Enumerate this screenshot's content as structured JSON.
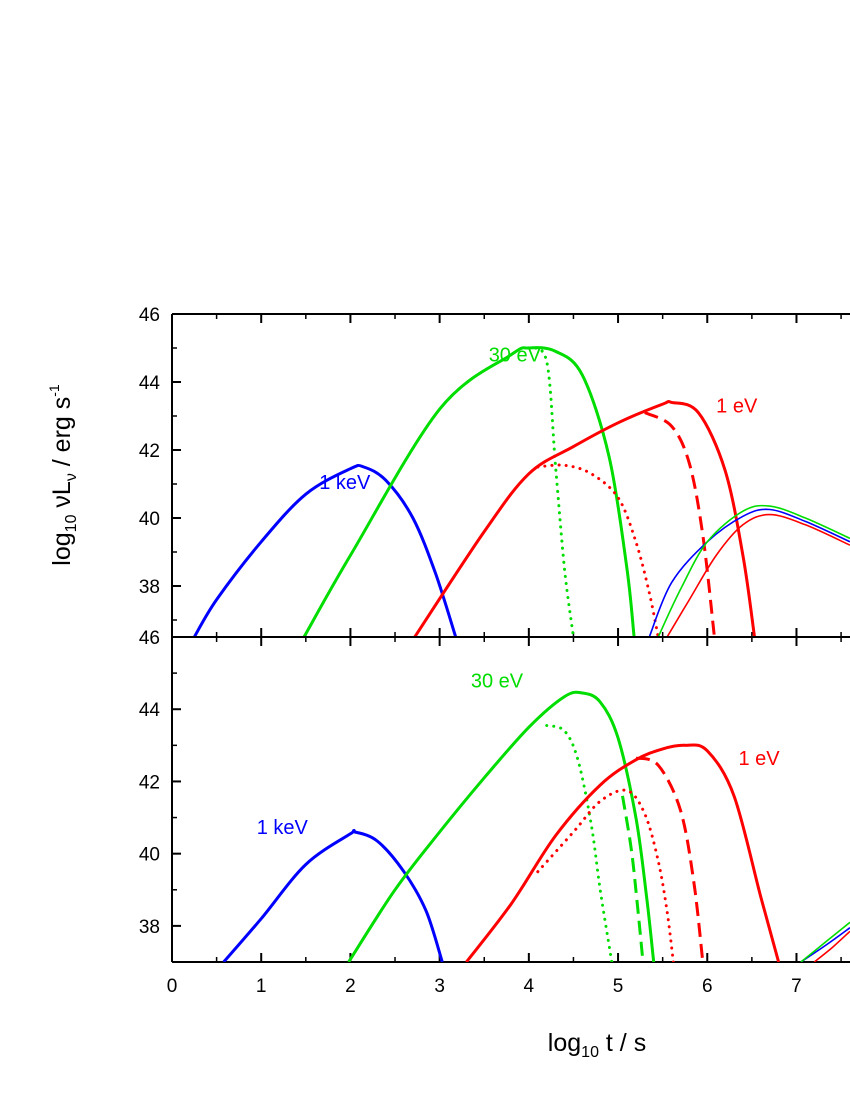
{
  "chart_data": [
    {
      "type": "line",
      "panel": "top",
      "xlim": [
        0,
        7.6
      ],
      "ylim": [
        36.5,
        46
      ],
      "yticks": [
        38,
        40,
        42,
        44,
        46
      ],
      "xticks": [
        0,
        1,
        2,
        3,
        4,
        5,
        6,
        7
      ],
      "xtick_labels_shown": false,
      "annotations": [
        {
          "text": "1 keV",
          "x": 1.65,
          "y": 40.85,
          "color": "#0000ff"
        },
        {
          "text": "30 eV",
          "x": 3.55,
          "y": 44.6,
          "color": "#00dd00"
        },
        {
          "text": "1 eV",
          "x": 6.1,
          "y": 43.1,
          "color": "#ff0000"
        }
      ],
      "series": [
        {
          "color": "#0000ff",
          "style": "solid",
          "weight": "thick",
          "x": [
            0.25,
            0.5,
            1.0,
            1.5,
            2.0,
            2.15,
            2.4,
            2.7,
            2.95,
            3.18
          ],
          "y": [
            36.5,
            37.6,
            39.3,
            40.7,
            41.45,
            41.5,
            41.1,
            40.0,
            38.4,
            36.5
          ]
        },
        {
          "color": "#00dd00",
          "style": "solid",
          "weight": "thick",
          "x": [
            1.48,
            2.0,
            3.0,
            3.8,
            4.0,
            4.3,
            4.6,
            4.9,
            5.1,
            5.18
          ],
          "y": [
            36.5,
            38.9,
            43.2,
            44.8,
            45.0,
            44.9,
            44.2,
            41.8,
            38.5,
            36.5
          ]
        },
        {
          "color": "#00dd00",
          "style": "dotted",
          "weight": "thick",
          "x": [
            4.0,
            4.2,
            4.3,
            4.4,
            4.5
          ],
          "y": [
            45.0,
            44.6,
            41.5,
            38.5,
            36.5
          ]
        },
        {
          "color": "#ff0000",
          "style": "solid",
          "weight": "thick",
          "x": [
            2.72,
            3.5,
            4.0,
            4.5,
            5.0,
            5.5,
            5.6,
            5.9,
            6.2,
            6.4,
            6.53
          ],
          "y": [
            36.5,
            39.6,
            41.3,
            42.1,
            42.8,
            43.35,
            43.4,
            43.1,
            41.4,
            38.9,
            36.5
          ]
        },
        {
          "color": "#ff0000",
          "style": "dashed",
          "weight": "thick",
          "x": [
            5.3,
            5.6,
            5.8,
            5.95,
            6.08
          ],
          "y": [
            43.1,
            42.7,
            41.6,
            39.5,
            36.5
          ]
        },
        {
          "color": "#ff0000",
          "style": "dotted",
          "weight": "thick",
          "x": [
            4.1,
            4.4,
            4.7,
            5.0,
            5.2,
            5.35,
            5.45
          ],
          "y": [
            41.5,
            41.55,
            41.3,
            40.6,
            39.3,
            37.8,
            36.5
          ]
        },
        {
          "color": "#0000ff",
          "style": "solid",
          "weight": "thin",
          "x": [
            5.35,
            5.6,
            6.0,
            6.4,
            6.7,
            7.1,
            7.6
          ],
          "y": [
            36.5,
            38.1,
            39.3,
            40.05,
            40.25,
            39.9,
            39.3
          ]
        },
        {
          "color": "#00dd00",
          "style": "solid",
          "weight": "thin",
          "x": [
            5.45,
            5.7,
            6.0,
            6.4,
            6.7,
            7.1,
            7.6
          ],
          "y": [
            36.5,
            37.9,
            39.3,
            40.2,
            40.35,
            40.0,
            39.4
          ]
        },
        {
          "color": "#ff0000",
          "style": "solid",
          "weight": "thin",
          "x": [
            5.55,
            5.8,
            6.1,
            6.4,
            6.7,
            7.1,
            7.6
          ],
          "y": [
            36.5,
            37.6,
            38.9,
            39.8,
            40.1,
            39.8,
            39.2
          ]
        }
      ]
    },
    {
      "type": "line",
      "panel": "bottom",
      "xlim": [
        0,
        7.6
      ],
      "ylim": [
        37,
        46
      ],
      "yticks": [
        38,
        40,
        42,
        44,
        46
      ],
      "xticks": [
        0,
        1,
        2,
        3,
        4,
        5,
        6,
        7
      ],
      "xtick_labels_shown": true,
      "annotations": [
        {
          "text": "1 keV",
          "x": 0.95,
          "y": 40.55,
          "color": "#0000ff"
        },
        {
          "text": "30 eV",
          "x": 3.35,
          "y": 44.6,
          "color": "#00dd00"
        },
        {
          "text": "1 eV",
          "x": 6.35,
          "y": 42.45,
          "color": "#ff0000"
        }
      ],
      "series": [
        {
          "color": "#0000ff",
          "style": "solid",
          "weight": "thick",
          "x": [
            0.58,
            1.0,
            1.5,
            2.0,
            2.05,
            2.3,
            2.6,
            2.85,
            3.03
          ],
          "y": [
            37.0,
            38.2,
            39.7,
            40.55,
            40.6,
            40.35,
            39.5,
            38.4,
            37.0
          ]
        },
        {
          "color": "#00dd00",
          "style": "solid",
          "weight": "thick",
          "x": [
            1.98,
            2.5,
            3.0,
            3.5,
            4.0,
            4.4,
            4.6,
            4.8,
            5.0,
            5.2,
            5.32,
            5.4
          ],
          "y": [
            37.0,
            39.0,
            40.6,
            42.1,
            43.5,
            44.35,
            44.45,
            44.2,
            43.2,
            41.0,
            38.8,
            37.0
          ]
        },
        {
          "color": "#00dd00",
          "style": "dotted",
          "weight": "thick",
          "x": [
            4.2,
            4.4,
            4.55,
            4.7,
            4.8,
            4.93
          ],
          "y": [
            43.55,
            43.4,
            42.6,
            40.8,
            39.0,
            37.0
          ]
        },
        {
          "color": "#00dd00",
          "style": "dashed",
          "weight": "thick",
          "x": [
            5.05,
            5.15,
            5.22,
            5.28
          ],
          "y": [
            41.6,
            40.1,
            38.5,
            37.0
          ]
        },
        {
          "color": "#ff0000",
          "style": "solid",
          "weight": "thick",
          "x": [
            3.3,
            3.8,
            4.3,
            4.8,
            5.2,
            5.5,
            5.75,
            6.0,
            6.3,
            6.6,
            6.8
          ],
          "y": [
            37.0,
            38.6,
            40.5,
            41.9,
            42.6,
            42.9,
            43.0,
            42.85,
            41.6,
            38.8,
            37.0
          ]
        },
        {
          "color": "#ff0000",
          "style": "dashed",
          "weight": "thick",
          "x": [
            5.2,
            5.45,
            5.7,
            5.85,
            5.95
          ],
          "y": [
            42.65,
            42.45,
            41.2,
            39.2,
            37.0
          ]
        },
        {
          "color": "#ff0000",
          "style": "dotted",
          "weight": "thick",
          "x": [
            4.1,
            4.5,
            4.8,
            5.1,
            5.3,
            5.45,
            5.55,
            5.62
          ],
          "y": [
            39.5,
            40.6,
            41.45,
            41.75,
            41.1,
            39.8,
            38.4,
            37.0
          ]
        },
        {
          "color": "#0000ff",
          "style": "solid",
          "weight": "thin",
          "x": [
            7.05,
            7.35,
            7.6
          ],
          "y": [
            37.0,
            37.5,
            37.95
          ]
        },
        {
          "color": "#00dd00",
          "style": "solid",
          "weight": "thin",
          "x": [
            7.05,
            7.35,
            7.6
          ],
          "y": [
            37.0,
            37.6,
            38.1
          ]
        },
        {
          "color": "#ff0000",
          "style": "solid",
          "weight": "thin",
          "x": [
            7.2,
            7.4,
            7.6
          ],
          "y": [
            37.0,
            37.4,
            37.85
          ]
        }
      ]
    }
  ]
}
